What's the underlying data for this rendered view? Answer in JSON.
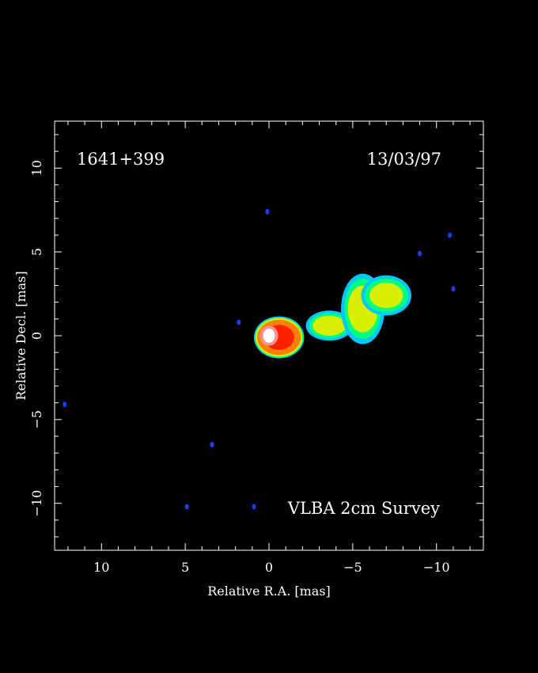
{
  "chart_data": {
    "type": "heatmap",
    "title": "",
    "annotations": {
      "source": "1641+399",
      "date": "13/03/97",
      "survey": "VLBA 2cm Survey"
    },
    "xlabel": "Relative R.A. [mas]",
    "ylabel": "Relative Decl. [mas]",
    "xlim": [
      12.8,
      -12.8
    ],
    "ylim": [
      -12.8,
      12.8
    ],
    "x_ticks": [
      10,
      5,
      0,
      -5,
      -10
    ],
    "x_tick_labels": [
      "10",
      "5",
      "0",
      "−5",
      "−10"
    ],
    "y_ticks": [
      10,
      5,
      0,
      -5,
      -10
    ],
    "y_tick_labels": [
      "10",
      "5",
      "0",
      "−5",
      "−10"
    ],
    "grid": false,
    "colormap": [
      "#1e3cff",
      "#00c8ff",
      "#00ff80",
      "#d8f000",
      "#ff8000",
      "#ff2000",
      "#ffffff"
    ],
    "components": [
      {
        "name": "core",
        "x": -0.6,
        "y": -0.1,
        "peak": 1.0
      },
      {
        "name": "jet-inner",
        "x": -3.6,
        "y": 0.6,
        "peak": 0.45
      },
      {
        "name": "jet-mid",
        "x": -5.6,
        "y": 1.6,
        "peak": 0.55
      },
      {
        "name": "jet-outer",
        "x": -7.0,
        "y": 2.4,
        "peak": 0.5
      }
    ],
    "noise_spots": [
      {
        "x": 0.1,
        "y": 7.4
      },
      {
        "x": 1.8,
        "y": 0.8
      },
      {
        "x": 12.2,
        "y": -4.1
      },
      {
        "x": 4.9,
        "y": -10.2
      },
      {
        "x": 3.4,
        "y": -6.5
      },
      {
        "x": 0.9,
        "y": -10.2
      },
      {
        "x": -9.0,
        "y": 4.9
      },
      {
        "x": -10.8,
        "y": 6.0
      },
      {
        "x": -11.0,
        "y": 2.8
      }
    ]
  }
}
